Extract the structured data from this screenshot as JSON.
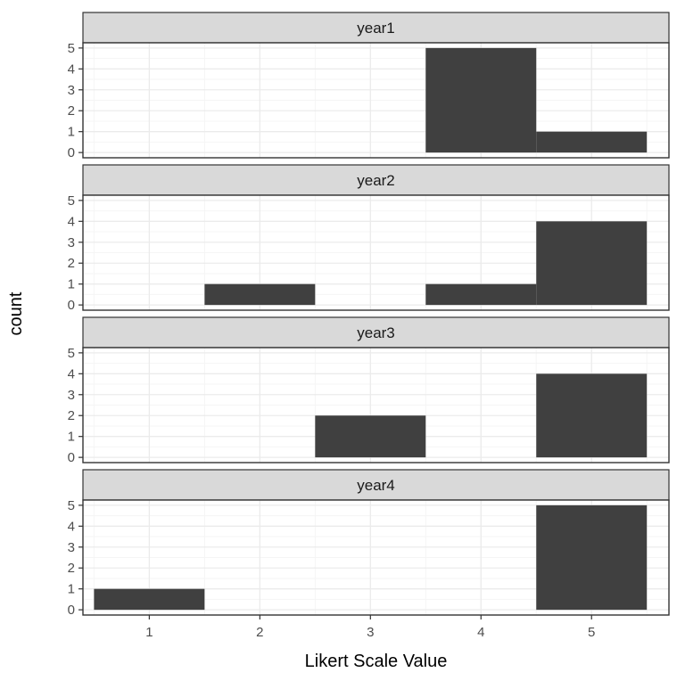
{
  "chart_data": {
    "type": "bar",
    "title": "",
    "xlabel": "Likert Scale Value",
    "ylabel": "count",
    "x_ticks": [
      1,
      2,
      3,
      4,
      5
    ],
    "y_ticks": [
      0,
      1,
      2,
      3,
      4,
      5
    ],
    "xlim": [
      0.4,
      5.7
    ],
    "ylim": [
      -0.25,
      5.25
    ],
    "bar_width": 1,
    "grid": true,
    "legend": "none",
    "facets": [
      {
        "label": "year1",
        "bars": [
          {
            "x": 4,
            "count": 5
          },
          {
            "x": 5,
            "count": 1
          }
        ]
      },
      {
        "label": "year2",
        "bars": [
          {
            "x": 2,
            "count": 1
          },
          {
            "x": 4,
            "count": 1
          },
          {
            "x": 5,
            "count": 4
          }
        ]
      },
      {
        "label": "year3",
        "bars": [
          {
            "x": 3,
            "count": 2
          },
          {
            "x": 5,
            "count": 4
          }
        ]
      },
      {
        "label": "year4",
        "bars": [
          {
            "x": 1,
            "count": 1
          },
          {
            "x": 5,
            "count": 5
          }
        ]
      }
    ],
    "colors": {
      "bar": "#404040",
      "strip_fill": "#d9d9d9",
      "panel_border": "#333333",
      "grid_major": "#ebebeb",
      "grid_minor": "#f5f5f5",
      "tick_mark": "#333333",
      "tick_text": "#4d4d4d",
      "axis_title": "#000000",
      "strip_text": "#1a1a1a"
    }
  }
}
